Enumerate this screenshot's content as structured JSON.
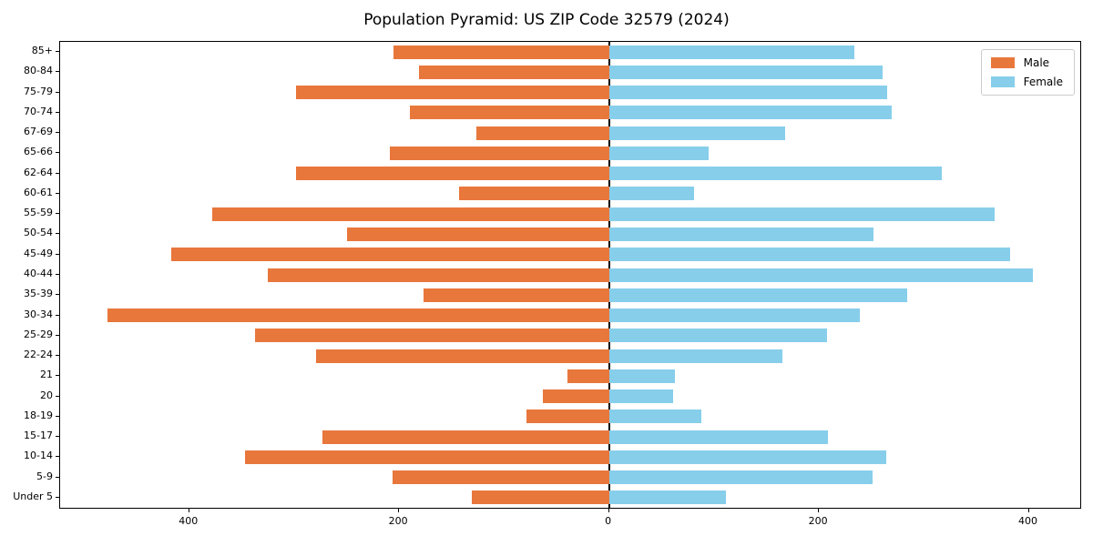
{
  "title": "Population Pyramid: US ZIP Code 32579 (2024)",
  "legend": {
    "male_label": "Male",
    "female_label": "Female"
  },
  "colors": {
    "male": "#e8773c",
    "female": "#87ceeb",
    "axis": "#000000",
    "legend_border": "#cccccc",
    "background": "#ffffff"
  },
  "chart_data": {
    "type": "bar",
    "subtype": "population-pyramid",
    "orientation": "horizontal",
    "title": "Population Pyramid: US ZIP Code 32579 (2024)",
    "categories_top_to_bottom": [
      "85+",
      "80-84",
      "75-79",
      "70-74",
      "67-69",
      "65-66",
      "62-64",
      "60-61",
      "55-59",
      "50-54",
      "45-49",
      "40-44",
      "35-39",
      "30-34",
      "25-29",
      "22-24",
      "21",
      "20",
      "18-19",
      "15-17",
      "10-14",
      "5-9",
      "Under 5"
    ],
    "series": [
      {
        "name": "Male",
        "side": "left",
        "color": "#e8773c",
        "values": [
          205,
          181,
          298,
          190,
          126,
          209,
          298,
          143,
          378,
          250,
          417,
          325,
          177,
          478,
          337,
          279,
          40,
          63,
          79,
          273,
          347,
          206,
          131
        ]
      },
      {
        "name": "Female",
        "side": "right",
        "color": "#87ceeb",
        "values": [
          234,
          261,
          265,
          269,
          168,
          95,
          317,
          81,
          367,
          252,
          382,
          404,
          284,
          239,
          208,
          165,
          63,
          61,
          88,
          209,
          264,
          251,
          111
        ]
      }
    ],
    "x_axis": {
      "tick_values": [
        -400,
        -200,
        0,
        200,
        400
      ],
      "tick_labels": [
        "400",
        "200",
        "0",
        "200",
        "400"
      ],
      "xlim": [
        -523,
        449
      ]
    },
    "y_axis": {
      "tick_labels": [
        "85+",
        "80-84",
        "75-79",
        "70-74",
        "67-69",
        "65-66",
        "62-64",
        "60-61",
        "55-59",
        "50-54",
        "45-49",
        "40-44",
        "35-39",
        "30-34",
        "25-29",
        "22-24",
        "21",
        "20",
        "18-19",
        "15-17",
        "10-14",
        "5-9",
        "Under 5"
      ]
    },
    "legend_position": "upper right",
    "grid": false
  }
}
